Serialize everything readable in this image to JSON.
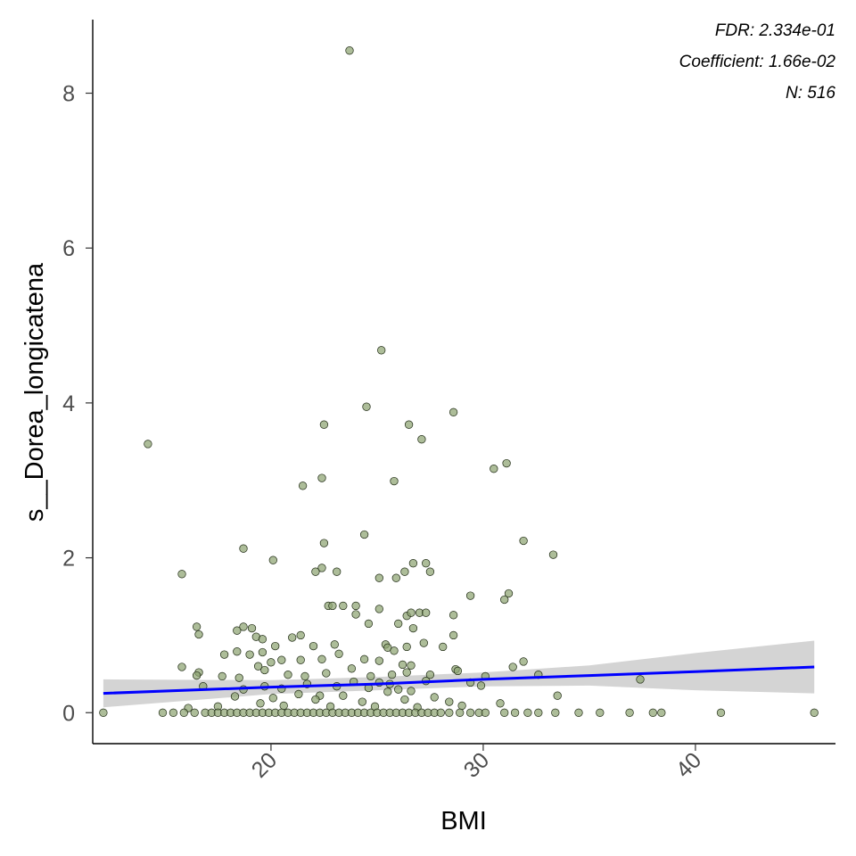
{
  "chart_data": {
    "type": "scatter",
    "title": "",
    "xlabel": "BMI",
    "ylabel": "s__Dorea_longicatena",
    "xlim": [
      11.6,
      46.6
    ],
    "ylim": [
      -0.4,
      8.95
    ],
    "x_ticks": [
      20,
      30,
      40
    ],
    "y_ticks": [
      0,
      2,
      4,
      6,
      8
    ],
    "grid": false,
    "annotations": [
      "FDR: 2.334e-01",
      "Coefficient: 1.66e-02",
      "N: 516"
    ],
    "colors": {
      "points": "#8da472",
      "point_outline": "#1f2a14",
      "fit_line": "#0000ff",
      "ci_band": "#c9c9c9"
    },
    "regression": {
      "x": [
        12.1,
        20,
        25,
        30,
        35,
        40,
        45.6
      ],
      "fit": [
        0.25,
        0.33,
        0.37,
        0.43,
        0.48,
        0.53,
        0.59
      ],
      "ci_low": [
        0.07,
        0.24,
        0.29,
        0.34,
        0.35,
        0.29,
        0.25
      ],
      "ci_high": [
        0.43,
        0.42,
        0.46,
        0.52,
        0.61,
        0.77,
        0.93
      ]
    },
    "points": [
      [
        23.7,
        8.55
      ],
      [
        25.2,
        4.68
      ],
      [
        24.5,
        3.95
      ],
      [
        26.5,
        3.72
      ],
      [
        22.5,
        3.72
      ],
      [
        28.6,
        3.88
      ],
      [
        14.2,
        3.47
      ],
      [
        27.1,
        3.53
      ],
      [
        31.1,
        3.22
      ],
      [
        30.5,
        3.15
      ],
      [
        22.4,
        3.03
      ],
      [
        25.8,
        2.99
      ],
      [
        21.5,
        2.93
      ],
      [
        24.4,
        2.3
      ],
      [
        22.5,
        2.19
      ],
      [
        18.7,
        2.12
      ],
      [
        31.9,
        2.22
      ],
      [
        33.3,
        2.04
      ],
      [
        20.1,
        1.97
      ],
      [
        15.8,
        1.79
      ],
      [
        22.4,
        1.87
      ],
      [
        22.1,
        1.82
      ],
      [
        23.1,
        1.82
      ],
      [
        25.1,
        1.74
      ],
      [
        25.9,
        1.74
      ],
      [
        26.3,
        1.82
      ],
      [
        26.7,
        1.93
      ],
      [
        27.3,
        1.93
      ],
      [
        27.5,
        1.82
      ],
      [
        29.4,
        1.51
      ],
      [
        31.2,
        1.54
      ],
      [
        31.0,
        1.46
      ],
      [
        22.7,
        1.38
      ],
      [
        22.9,
        1.38
      ],
      [
        23.4,
        1.38
      ],
      [
        24.0,
        1.38
      ],
      [
        25.1,
        1.34
      ],
      [
        26.4,
        1.25
      ],
      [
        26.6,
        1.29
      ],
      [
        27.0,
        1.29
      ],
      [
        27.3,
        1.29
      ],
      [
        28.6,
        1.26
      ],
      [
        16.5,
        1.11
      ],
      [
        16.6,
        1.01
      ],
      [
        18.4,
        1.06
      ],
      [
        18.7,
        1.11
      ],
      [
        19.1,
        1.09
      ],
      [
        21.4,
        1.0
      ],
      [
        21.0,
        0.97
      ],
      [
        19.3,
        0.98
      ],
      [
        19.6,
        0.95
      ],
      [
        20.2,
        0.86
      ],
      [
        22.0,
        0.86
      ],
      [
        23.0,
        0.88
      ],
      [
        24.0,
        1.27
      ],
      [
        24.6,
        1.15
      ],
      [
        26.0,
        1.15
      ],
      [
        26.7,
        1.09
      ],
      [
        28.6,
        1.0
      ],
      [
        25.4,
        0.88
      ],
      [
        25.5,
        0.84
      ],
      [
        25.8,
        0.8
      ],
      [
        26.4,
        0.85
      ],
      [
        27.2,
        0.9
      ],
      [
        28.1,
        0.85
      ],
      [
        17.8,
        0.75
      ],
      [
        18.4,
        0.79
      ],
      [
        19.0,
        0.75
      ],
      [
        19.6,
        0.78
      ],
      [
        20.0,
        0.65
      ],
      [
        20.5,
        0.68
      ],
      [
        21.4,
        0.68
      ],
      [
        22.4,
        0.69
      ],
      [
        23.2,
        0.76
      ],
      [
        24.4,
        0.69
      ],
      [
        25.1,
        0.67
      ],
      [
        26.2,
        0.62
      ],
      [
        26.6,
        0.61
      ],
      [
        28.7,
        0.56
      ],
      [
        31.9,
        0.66
      ],
      [
        31.4,
        0.59
      ],
      [
        15.8,
        0.59
      ],
      [
        16.6,
        0.52
      ],
      [
        16.5,
        0.48
      ],
      [
        18.5,
        0.45
      ],
      [
        19.4,
        0.6
      ],
      [
        19.7,
        0.55
      ],
      [
        20.8,
        0.49
      ],
      [
        21.6,
        0.47
      ],
      [
        22.6,
        0.51
      ],
      [
        23.8,
        0.57
      ],
      [
        24.7,
        0.47
      ],
      [
        25.7,
        0.49
      ],
      [
        26.4,
        0.52
      ],
      [
        27.5,
        0.49
      ],
      [
        28.8,
        0.54
      ],
      [
        30.1,
        0.47
      ],
      [
        32.6,
        0.49
      ],
      [
        37.4,
        0.43
      ],
      [
        17.7,
        0.47
      ],
      [
        18.7,
        0.3
      ],
      [
        19.7,
        0.34
      ],
      [
        20.5,
        0.31
      ],
      [
        21.7,
        0.37
      ],
      [
        22.3,
        0.22
      ],
      [
        23.1,
        0.34
      ],
      [
        23.9,
        0.4
      ],
      [
        24.6,
        0.32
      ],
      [
        25.1,
        0.39
      ],
      [
        25.6,
        0.37
      ],
      [
        26.0,
        0.3
      ],
      [
        26.6,
        0.28
      ],
      [
        27.3,
        0.41
      ],
      [
        29.4,
        0.39
      ],
      [
        29.9,
        0.35
      ],
      [
        33.5,
        0.22
      ],
      [
        16.8,
        0.34
      ],
      [
        18.3,
        0.21
      ],
      [
        20.1,
        0.19
      ],
      [
        21.3,
        0.24
      ],
      [
        22.1,
        0.17
      ],
      [
        23.4,
        0.22
      ],
      [
        24.3,
        0.14
      ],
      [
        25.5,
        0.27
      ],
      [
        26.3,
        0.17
      ],
      [
        27.7,
        0.2
      ],
      [
        28.4,
        0.14
      ],
      [
        30.8,
        0.12
      ],
      [
        16.1,
        0.06
      ],
      [
        17.5,
        0.08
      ],
      [
        19.5,
        0.12
      ],
      [
        20.6,
        0.09
      ],
      [
        22.8,
        0.08
      ],
      [
        24.9,
        0.08
      ],
      [
        26.9,
        0.07
      ],
      [
        29.0,
        0.09
      ],
      [
        12.1,
        0
      ],
      [
        14.9,
        0
      ],
      [
        15.4,
        0
      ],
      [
        15.9,
        0
      ],
      [
        16.4,
        0
      ],
      [
        16.9,
        0
      ],
      [
        17.2,
        0
      ],
      [
        17.5,
        0
      ],
      [
        17.8,
        0
      ],
      [
        18.1,
        0
      ],
      [
        18.4,
        0
      ],
      [
        18.7,
        0
      ],
      [
        19.0,
        0
      ],
      [
        19.3,
        0
      ],
      [
        19.6,
        0
      ],
      [
        19.9,
        0
      ],
      [
        20.2,
        0
      ],
      [
        20.5,
        0
      ],
      [
        20.8,
        0
      ],
      [
        21.1,
        0
      ],
      [
        21.4,
        0
      ],
      [
        21.7,
        0
      ],
      [
        22.0,
        0
      ],
      [
        22.3,
        0
      ],
      [
        22.6,
        0
      ],
      [
        22.9,
        0
      ],
      [
        23.2,
        0
      ],
      [
        23.5,
        0
      ],
      [
        23.8,
        0
      ],
      [
        24.1,
        0
      ],
      [
        24.4,
        0
      ],
      [
        24.7,
        0
      ],
      [
        25.0,
        0
      ],
      [
        25.3,
        0
      ],
      [
        25.6,
        0
      ],
      [
        25.9,
        0
      ],
      [
        26.2,
        0
      ],
      [
        26.5,
        0
      ],
      [
        26.8,
        0
      ],
      [
        27.1,
        0
      ],
      [
        27.4,
        0
      ],
      [
        27.7,
        0
      ],
      [
        28.0,
        0
      ],
      [
        28.4,
        0
      ],
      [
        28.9,
        0
      ],
      [
        29.4,
        0
      ],
      [
        29.8,
        0
      ],
      [
        30.1,
        0
      ],
      [
        31.0,
        0
      ],
      [
        31.5,
        0
      ],
      [
        32.1,
        0
      ],
      [
        32.6,
        0
      ],
      [
        33.4,
        0
      ],
      [
        34.5,
        0
      ],
      [
        35.5,
        0
      ],
      [
        36.9,
        0
      ],
      [
        38.0,
        0
      ],
      [
        38.4,
        0
      ],
      [
        41.2,
        0
      ],
      [
        45.6,
        0
      ]
    ]
  }
}
